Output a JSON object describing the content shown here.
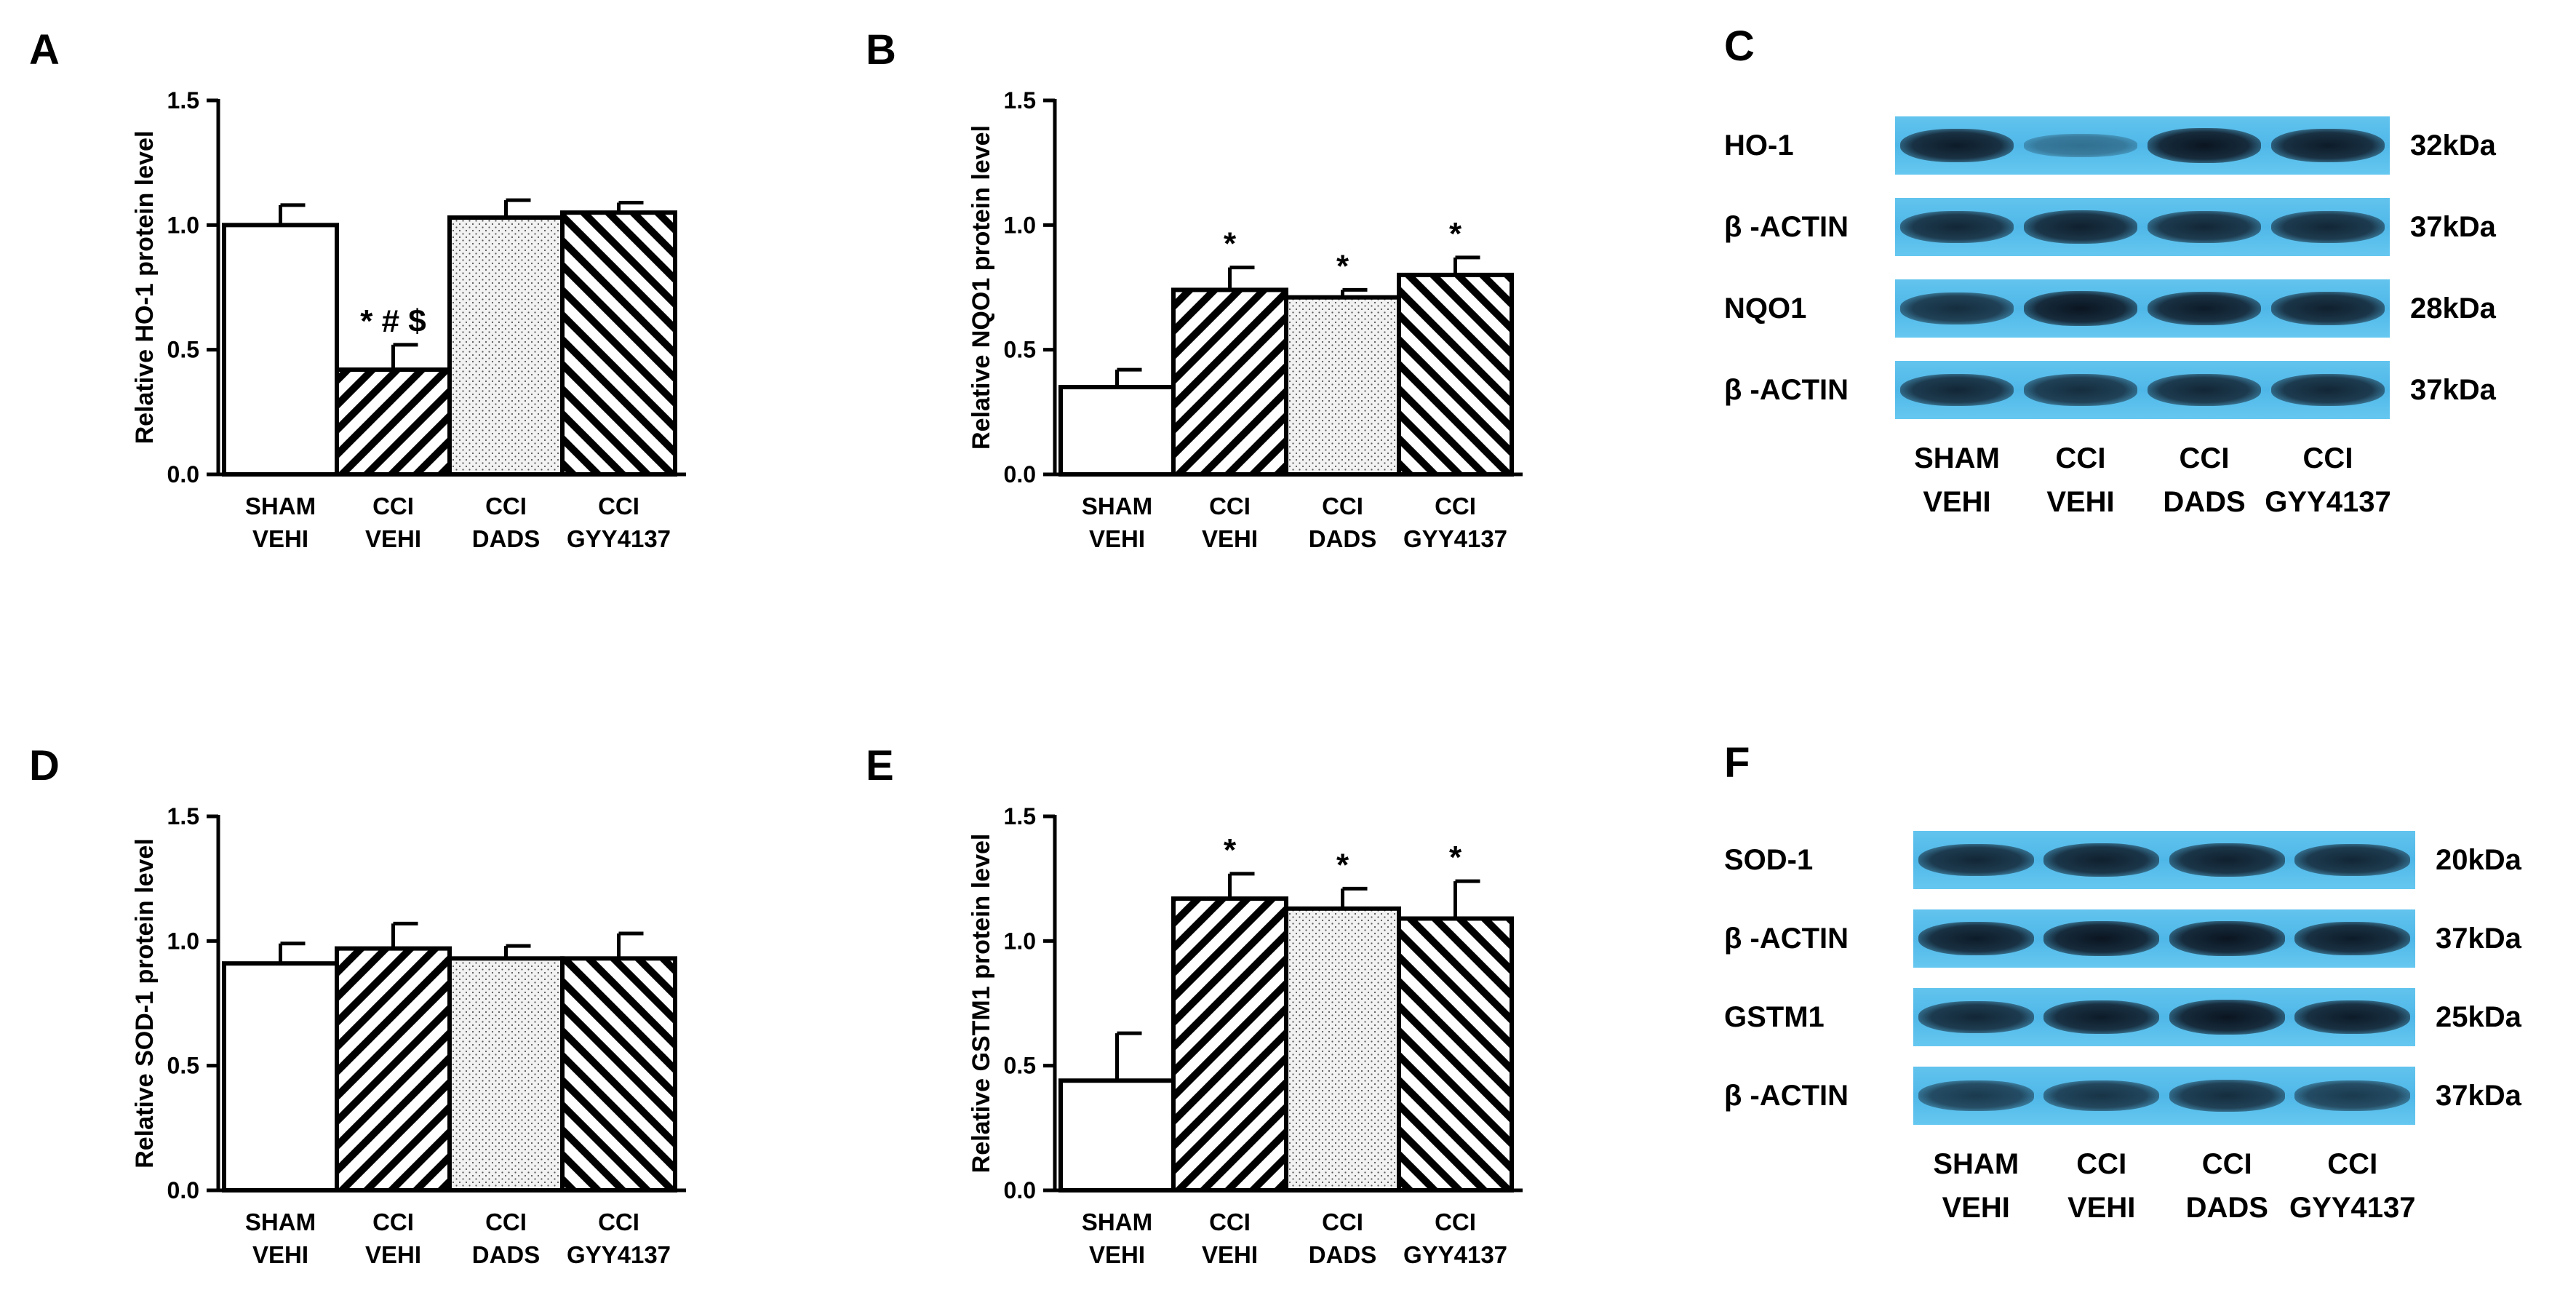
{
  "chart_data": [
    {
      "type": "bar",
      "panel": "A",
      "ylabel": "Relative HO-1 protein level",
      "ylim": [
        0,
        1.5
      ],
      "yticks": [
        "0.0",
        "0.5",
        "1.0",
        "1.5"
      ],
      "categories": [
        {
          "top": "SHAM",
          "bottom": "VEHI"
        },
        {
          "top": "CCI",
          "bottom": "VEHI"
        },
        {
          "top": "CCI",
          "bottom": "DADS"
        },
        {
          "top": "CCI",
          "bottom": "GYY4137"
        }
      ],
      "values": [
        1.0,
        0.42,
        1.03,
        1.05
      ],
      "errors": [
        0.08,
        0.1,
        0.07,
        0.04
      ],
      "annotations": [
        "",
        "* # $",
        "",
        ""
      ]
    },
    {
      "type": "bar",
      "panel": "B",
      "ylabel": "Relative NQO1 protein level",
      "ylim": [
        0,
        1.5
      ],
      "yticks": [
        "0.0",
        "0.5",
        "1.0",
        "1.5"
      ],
      "categories": [
        {
          "top": "SHAM",
          "bottom": "VEHI"
        },
        {
          "top": "CCI",
          "bottom": "VEHI"
        },
        {
          "top": "CCI",
          "bottom": "DADS"
        },
        {
          "top": "CCI",
          "bottom": "GYY4137"
        }
      ],
      "values": [
        0.35,
        0.74,
        0.71,
        0.8
      ],
      "errors": [
        0.07,
        0.09,
        0.03,
        0.07
      ],
      "annotations": [
        "",
        "*",
        "*",
        "*"
      ]
    },
    {
      "type": "bar",
      "panel": "D",
      "ylabel": "Relative SOD-1 protein level",
      "ylim": [
        0,
        1.5
      ],
      "yticks": [
        "0.0",
        "0.5",
        "1.0",
        "1.5"
      ],
      "categories": [
        {
          "top": "SHAM",
          "bottom": "VEHI"
        },
        {
          "top": "CCI",
          "bottom": "VEHI"
        },
        {
          "top": "CCI",
          "bottom": "DADS"
        },
        {
          "top": "CCI",
          "bottom": "GYY4137"
        }
      ],
      "values": [
        0.91,
        0.97,
        0.93,
        0.93
      ],
      "errors": [
        0.08,
        0.1,
        0.05,
        0.1
      ],
      "annotations": [
        "",
        "",
        "",
        ""
      ]
    },
    {
      "type": "bar",
      "panel": "E",
      "ylabel": "Relative GSTM1 protein level",
      "ylim": [
        0,
        1.5
      ],
      "yticks": [
        "0.0",
        "0.5",
        "1.0",
        "1.5"
      ],
      "categories": [
        {
          "top": "SHAM",
          "bottom": "VEHI"
        },
        {
          "top": "CCI",
          "bottom": "VEHI"
        },
        {
          "top": "CCI",
          "bottom": "DADS"
        },
        {
          "top": "CCI",
          "bottom": "GYY4137"
        }
      ],
      "values": [
        0.44,
        1.17,
        1.13,
        1.09
      ],
      "errors": [
        0.19,
        0.1,
        0.08,
        0.15
      ],
      "annotations": [
        "",
        "*",
        "*",
        "*"
      ]
    }
  ],
  "blots": [
    {
      "panel": "C",
      "rows": [
        {
          "protein": "HO-1",
          "weight": "32kDa",
          "band_intensity": [
            0.95,
            0.25,
            1.0,
            0.95
          ]
        },
        {
          "protein": "β -ACTIN",
          "weight": "37kDa",
          "band_intensity": [
            0.85,
            0.9,
            0.85,
            0.85
          ]
        },
        {
          "protein": "NQO1",
          "weight": "28kDa",
          "band_intensity": [
            0.8,
            1.0,
            0.95,
            0.9
          ]
        },
        {
          "protein": "β -ACTIN",
          "weight": "37kDa",
          "band_intensity": [
            0.85,
            0.8,
            0.85,
            0.85
          ]
        }
      ],
      "lanes": [
        {
          "top": "SHAM",
          "bottom": "VEHI"
        },
        {
          "top": "CCI",
          "bottom": "VEHI"
        },
        {
          "top": "CCI",
          "bottom": "DADS"
        },
        {
          "top": "CCI",
          "bottom": "GYY4137"
        }
      ]
    },
    {
      "panel": "F",
      "rows": [
        {
          "protein": "SOD-1",
          "weight": "20kDa",
          "band_intensity": [
            0.85,
            0.9,
            0.9,
            0.85
          ]
        },
        {
          "protein": "β -ACTIN",
          "weight": "37kDa",
          "band_intensity": [
            0.95,
            1.0,
            1.0,
            0.95
          ]
        },
        {
          "protein": "GSTM1",
          "weight": "25kDa",
          "band_intensity": [
            0.85,
            0.95,
            1.0,
            0.95
          ]
        },
        {
          "protein": "β -ACTIN",
          "weight": "37kDa",
          "band_intensity": [
            0.7,
            0.75,
            0.8,
            0.7
          ]
        }
      ],
      "lanes": [
        {
          "top": "SHAM",
          "bottom": "VEHI"
        },
        {
          "top": "CCI",
          "bottom": "VEHI"
        },
        {
          "top": "CCI",
          "bottom": "DADS"
        },
        {
          "top": "CCI",
          "bottom": "GYY4137"
        }
      ]
    }
  ],
  "colors": {
    "axis": "#000000",
    "bar_fill": "#ffffff",
    "dots_fill": "#f2f2f2",
    "blot_bg": "#58bdea"
  }
}
